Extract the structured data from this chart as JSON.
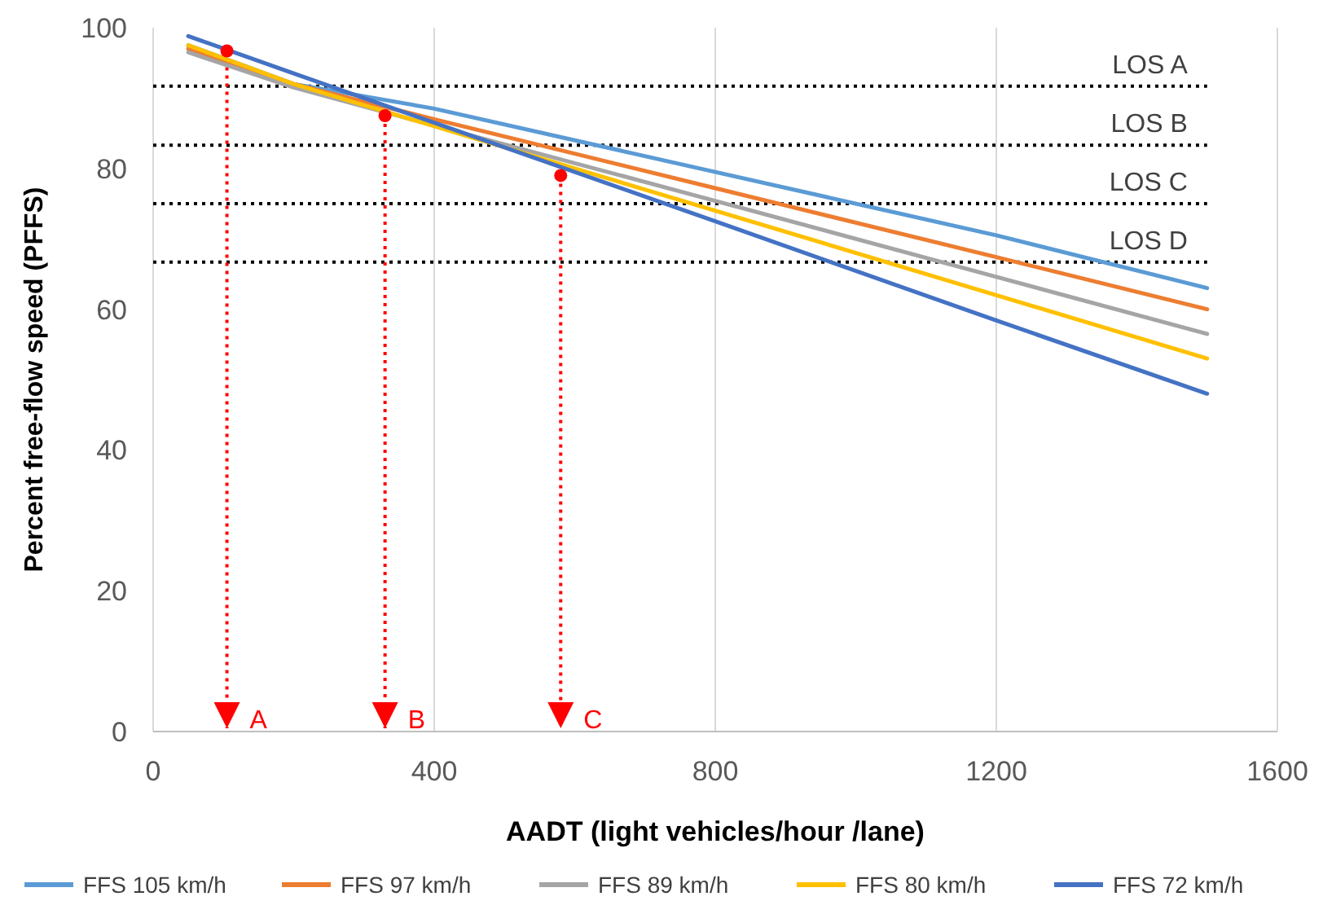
{
  "chart_data": {
    "type": "line",
    "xlabel": "AADT (light vehicles/hour /lane)",
    "ylabel": "Percent free-flow speed (PFFS)",
    "xlim": [
      0,
      1600
    ],
    "xticks": [
      0,
      400,
      800,
      1200,
      1600
    ],
    "ylim": [
      0,
      100
    ],
    "yticks": [
      0,
      20,
      40,
      60,
      80,
      100
    ],
    "grid": "x",
    "legend": "bottom",
    "marker": "none",
    "line_style": "solid",
    "series": [
      {
        "name": "FFS 105 km/h",
        "color": "#5b9bd5",
        "x": [
          50,
          200,
          400,
          800,
          1200,
          1500
        ],
        "values": [
          97.5,
          92,
          88.5,
          79.5,
          70.5,
          63
        ]
      },
      {
        "name": "FFS 97 km/h",
        "color": "#ed7d31",
        "x": [
          50,
          200,
          400,
          800,
          1200,
          1500
        ],
        "values": [
          97,
          92,
          87,
          77.2,
          67.4,
          60
        ]
      },
      {
        "name": "FFS 89 km/h",
        "color": "#a5a5a5",
        "x": [
          50,
          200,
          400,
          800,
          1200,
          1500
        ],
        "values": [
          96.5,
          91.5,
          86.1,
          75.4,
          64.6,
          56.5
        ]
      },
      {
        "name": "FFS 80 km/h",
        "color": "#ffc000",
        "x": [
          50,
          200,
          400,
          800,
          1200,
          1500
        ],
        "values": [
          97.5,
          92,
          86,
          74,
          62,
          53
        ]
      },
      {
        "name": "FFS 72 km/h",
        "color": "#4472c4",
        "x": [
          50,
          200,
          400,
          800,
          1200,
          1500
        ],
        "values": [
          98.8,
          93.5,
          86.5,
          72.5,
          58.4,
          48
        ]
      },
      {
        "type": "scatter",
        "color": "#ff0000",
        "marker": "circle",
        "x": [
          105,
          330,
          580
        ],
        "values": [
          96.7,
          87.5,
          79
        ]
      }
    ],
    "ref_lines": [
      {
        "axis": "y",
        "value": 91.7,
        "label": "LOS A",
        "color": "#000000",
        "line_style": "dotted"
      },
      {
        "axis": "y",
        "value": 83.3,
        "label": "LOS B",
        "color": "#000000",
        "line_style": "dotted"
      },
      {
        "axis": "y",
        "value": 75,
        "label": "LOS C",
        "color": "#000000",
        "line_style": "dotted"
      },
      {
        "axis": "y",
        "value": 66.7,
        "label": "LOS D",
        "color": "#000000",
        "line_style": "dotted"
      },
      {
        "axis": "x",
        "value": 105,
        "label": "A",
        "color": "#ff0000",
        "line_style": "dotted"
      },
      {
        "axis": "x",
        "value": 330,
        "label": "B",
        "color": "#ff0000",
        "line_style": "dotted"
      },
      {
        "axis": "x",
        "value": 580,
        "label": "C",
        "color": "#ff0000",
        "line_style": "dotted"
      }
    ]
  }
}
